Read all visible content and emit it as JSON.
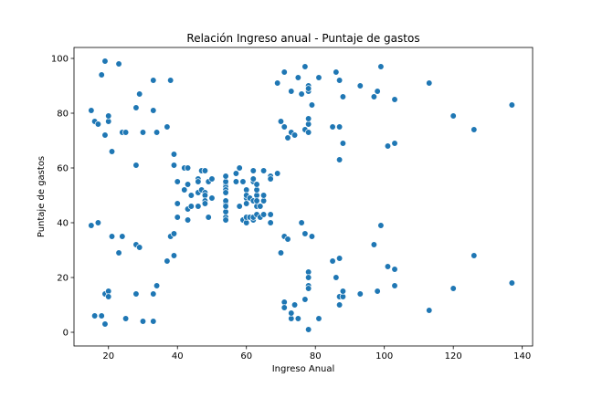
{
  "chart_data": {
    "type": "scatter",
    "title": "Relación Ingreso anual - Puntaje de gastos",
    "xlabel": "Ingreso Anual",
    "ylabel": "Puntaje de gastos",
    "xlim": [
      10,
      143
    ],
    "ylim": [
      -5,
      104
    ],
    "xticks": [
      20,
      40,
      60,
      80,
      100,
      120,
      140
    ],
    "yticks": [
      0,
      20,
      40,
      60,
      80,
      100
    ],
    "grid": false,
    "legend": "none",
    "marker_color": "#1f77b4",
    "marker_edge": "#ffffff",
    "points": [
      [
        15,
        39
      ],
      [
        15,
        81
      ],
      [
        16,
        6
      ],
      [
        16,
        77
      ],
      [
        17,
        40
      ],
      [
        17,
        76
      ],
      [
        18,
        6
      ],
      [
        18,
        94
      ],
      [
        19,
        3
      ],
      [
        19,
        72
      ],
      [
        19,
        14
      ],
      [
        19,
        99
      ],
      [
        20,
        15
      ],
      [
        20,
        77
      ],
      [
        20,
        13
      ],
      [
        20,
        79
      ],
      [
        21,
        35
      ],
      [
        21,
        66
      ],
      [
        23,
        29
      ],
      [
        23,
        98
      ],
      [
        24,
        35
      ],
      [
        24,
        73
      ],
      [
        25,
        5
      ],
      [
        25,
        73
      ],
      [
        28,
        14
      ],
      [
        28,
        82
      ],
      [
        28,
        32
      ],
      [
        28,
        61
      ],
      [
        29,
        31
      ],
      [
        29,
        87
      ],
      [
        30,
        4
      ],
      [
        30,
        73
      ],
      [
        33,
        4
      ],
      [
        33,
        92
      ],
      [
        33,
        14
      ],
      [
        33,
        81
      ],
      [
        34,
        17
      ],
      [
        34,
        73
      ],
      [
        37,
        26
      ],
      [
        37,
        75
      ],
      [
        38,
        35
      ],
      [
        38,
        92
      ],
      [
        39,
        36
      ],
      [
        39,
        61
      ],
      [
        39,
        28
      ],
      [
        39,
        65
      ],
      [
        40,
        55
      ],
      [
        40,
        47
      ],
      [
        40,
        42
      ],
      [
        40,
        42
      ],
      [
        42,
        52
      ],
      [
        42,
        60
      ],
      [
        43,
        54
      ],
      [
        43,
        60
      ],
      [
        43,
        45
      ],
      [
        43,
        41
      ],
      [
        44,
        50
      ],
      [
        44,
        46
      ],
      [
        46,
        51
      ],
      [
        46,
        46
      ],
      [
        46,
        56
      ],
      [
        46,
        55
      ],
      [
        47,
        52
      ],
      [
        47,
        59
      ],
      [
        48,
        51
      ],
      [
        48,
        59
      ],
      [
        48,
        50
      ],
      [
        48,
        48
      ],
      [
        48,
        59
      ],
      [
        48,
        47
      ],
      [
        49,
        55
      ],
      [
        49,
        42
      ],
      [
        50,
        49
      ],
      [
        50,
        56
      ],
      [
        54,
        47
      ],
      [
        54,
        54
      ],
      [
        54,
        53
      ],
      [
        54,
        48
      ],
      [
        54,
        52
      ],
      [
        54,
        42
      ],
      [
        54,
        51
      ],
      [
        54,
        55
      ],
      [
        54,
        41
      ],
      [
        54,
        44
      ],
      [
        54,
        57
      ],
      [
        54,
        46
      ],
      [
        57,
        58
      ],
      [
        57,
        55
      ],
      [
        58,
        60
      ],
      [
        58,
        46
      ],
      [
        59,
        55
      ],
      [
        59,
        41
      ],
      [
        60,
        49
      ],
      [
        60,
        40
      ],
      [
        60,
        42
      ],
      [
        60,
        52
      ],
      [
        60,
        47
      ],
      [
        60,
        50
      ],
      [
        61,
        42
      ],
      [
        61,
        49
      ],
      [
        62,
        41
      ],
      [
        62,
        48
      ],
      [
        62,
        59
      ],
      [
        62,
        55
      ],
      [
        62,
        56
      ],
      [
        62,
        42
      ],
      [
        63,
        50
      ],
      [
        63,
        46
      ],
      [
        63,
        43
      ],
      [
        63,
        48
      ],
      [
        63,
        52
      ],
      [
        63,
        54
      ],
      [
        64,
        42
      ],
      [
        64,
        46
      ],
      [
        65,
        48
      ],
      [
        65,
        50
      ],
      [
        65,
        43
      ],
      [
        65,
        59
      ],
      [
        67,
        43
      ],
      [
        67,
        57
      ],
      [
        67,
        56
      ],
      [
        67,
        40
      ],
      [
        69,
        58
      ],
      [
        69,
        91
      ],
      [
        70,
        29
      ],
      [
        70,
        77
      ],
      [
        71,
        35
      ],
      [
        71,
        95
      ],
      [
        71,
        11
      ],
      [
        71,
        75
      ],
      [
        71,
        9
      ],
      [
        71,
        75
      ],
      [
        72,
        34
      ],
      [
        72,
        71
      ],
      [
        73,
        5
      ],
      [
        73,
        88
      ],
      [
        73,
        7
      ],
      [
        73,
        73
      ],
      [
        74,
        10
      ],
      [
        74,
        72
      ],
      [
        75,
        5
      ],
      [
        75,
        93
      ],
      [
        76,
        40
      ],
      [
        76,
        87
      ],
      [
        77,
        12
      ],
      [
        77,
        97
      ],
      [
        77,
        36
      ],
      [
        77,
        74
      ],
      [
        78,
        22
      ],
      [
        78,
        90
      ],
      [
        78,
        17
      ],
      [
        78,
        88
      ],
      [
        78,
        20
      ],
      [
        78,
        76
      ],
      [
        78,
        16
      ],
      [
        78,
        89
      ],
      [
        78,
        1
      ],
      [
        78,
        78
      ],
      [
        78,
        1
      ],
      [
        78,
        73
      ],
      [
        79,
        35
      ],
      [
        79,
        83
      ],
      [
        81,
        5
      ],
      [
        81,
        93
      ],
      [
        85,
        26
      ],
      [
        85,
        75
      ],
      [
        86,
        20
      ],
      [
        86,
        95
      ],
      [
        87,
        27
      ],
      [
        87,
        63
      ],
      [
        87,
        13
      ],
      [
        87,
        75
      ],
      [
        87,
        10
      ],
      [
        87,
        92
      ],
      [
        88,
        13
      ],
      [
        88,
        86
      ],
      [
        88,
        15
      ],
      [
        88,
        69
      ],
      [
        93,
        14
      ],
      [
        93,
        90
      ],
      [
        97,
        32
      ],
      [
        97,
        86
      ],
      [
        98,
        15
      ],
      [
        98,
        88
      ],
      [
        99,
        39
      ],
      [
        99,
        97
      ],
      [
        101,
        24
      ],
      [
        101,
        68
      ],
      [
        103,
        17
      ],
      [
        103,
        85
      ],
      [
        103,
        23
      ],
      [
        103,
        69
      ],
      [
        113,
        8
      ],
      [
        113,
        91
      ],
      [
        120,
        16
      ],
      [
        120,
        79
      ],
      [
        126,
        28
      ],
      [
        126,
        74
      ],
      [
        137,
        18
      ],
      [
        137,
        83
      ]
    ]
  }
}
